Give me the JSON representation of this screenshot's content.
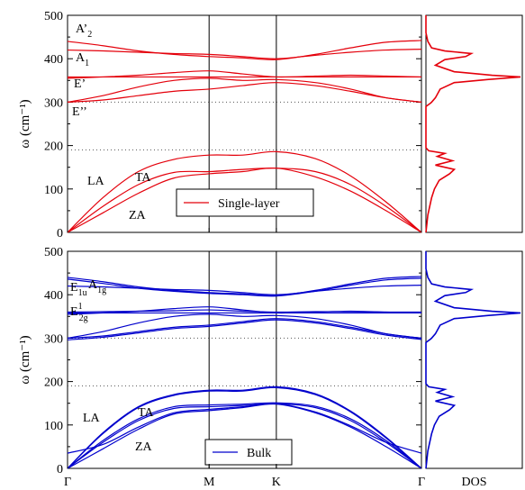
{
  "chart_data": [
    {
      "type": "line",
      "ylabel": "ω (cm⁻¹)",
      "ylim": [
        0,
        500
      ],
      "yticks": [
        0,
        100,
        200,
        300,
        400,
        500
      ],
      "x_kpoints": [
        {
          "label": "Γ",
          "x": 0.0
        },
        {
          "label": "M",
          "x": 0.4
        },
        {
          "label": "K",
          "x": 0.59
        },
        {
          "label": "Γ",
          "x": 1.0
        }
      ],
      "dotted_lines_y": [
        190,
        300
      ],
      "legend": {
        "label": "Single-layer",
        "position": "center",
        "color": "#e4000b"
      },
      "color": "#e4000b",
      "x": [
        0.0,
        0.1,
        0.2,
        0.3,
        0.4,
        0.495,
        0.59,
        0.7,
        0.8,
        0.9,
        1.0
      ],
      "series": [
        {
          "values": [
            0,
            45,
            90,
            125,
            135,
            140,
            148,
            128,
            95,
            50,
            0
          ]
        },
        {
          "values": [
            0,
            60,
            110,
            138,
            140,
            145,
            148,
            140,
            110,
            60,
            0
          ]
        },
        {
          "values": [
            0,
            80,
            140,
            168,
            178,
            178,
            186,
            170,
            130,
            70,
            0
          ]
        },
        {
          "values": [
            300,
            305,
            315,
            325,
            330,
            338,
            345,
            338,
            325,
            310,
            300
          ]
        },
        {
          "values": [
            300,
            315,
            335,
            350,
            355,
            350,
            352,
            345,
            330,
            310,
            300
          ]
        },
        {
          "values": [
            355,
            358,
            362,
            368,
            372,
            365,
            358,
            360,
            362,
            360,
            358
          ]
        },
        {
          "values": [
            358,
            358,
            358,
            358,
            358,
            358,
            358,
            358,
            358,
            358,
            358
          ]
        },
        {
          "values": [
            420,
            418,
            415,
            412,
            410,
            405,
            400,
            408,
            415,
            420,
            422
          ]
        },
        {
          "values": [
            440,
            430,
            418,
            410,
            405,
            402,
            398,
            410,
            425,
            438,
            442
          ]
        }
      ],
      "annotations": [
        {
          "text": "A’",
          "sub": "2"
        },
        {
          "text": "A",
          "sub": "1"
        },
        {
          "text": "E’",
          "sub": ""
        },
        {
          "text": "E’’",
          "sub": ""
        },
        {
          "text": "LA",
          "sub": ""
        },
        {
          "text": "TA",
          "sub": ""
        },
        {
          "text": "ZA",
          "sub": ""
        }
      ],
      "dos": {
        "xlabel": "",
        "omega": [
          0,
          20,
          40,
          60,
          80,
          100,
          120,
          135,
          145,
          155,
          165,
          175,
          182,
          188,
          195,
          210,
          250,
          290,
          298,
          300,
          310,
          330,
          345,
          352,
          358,
          362,
          370,
          385,
          398,
          405,
          412,
          418,
          425,
          440,
          460,
          500
        ],
        "values": [
          0.0,
          0.01,
          0.02,
          0.04,
          0.06,
          0.09,
          0.14,
          0.25,
          0.3,
          0.1,
          0.28,
          0.12,
          0.2,
          0.03,
          0.0,
          0.0,
          0.0,
          0.0,
          0.05,
          0.06,
          0.1,
          0.15,
          0.3,
          0.65,
          1.0,
          0.7,
          0.3,
          0.1,
          0.2,
          0.42,
          0.48,
          0.2,
          0.06,
          0.02,
          0.0,
          0.0
        ]
      }
    },
    {
      "type": "line",
      "ylabel": "ω (cm⁻¹)",
      "ylim": [
        0,
        500
      ],
      "yticks": [
        0,
        100,
        200,
        300,
        400,
        500
      ],
      "x_kpoints": [
        {
          "label": "Γ",
          "x": 0.0
        },
        {
          "label": "M",
          "x": 0.4
        },
        {
          "label": "K",
          "x": 0.59
        },
        {
          "label": "Γ",
          "x": 1.0
        }
      ],
      "dotted_lines_y": [
        190,
        300
      ],
      "legend": {
        "label": "Bulk",
        "position": "bottom-center",
        "color": "#0000cc"
      },
      "color": "#0000cc",
      "x": [
        0.0,
        0.1,
        0.2,
        0.3,
        0.4,
        0.495,
        0.59,
        0.7,
        0.8,
        0.9,
        1.0
      ],
      "series": [
        {
          "values": [
            0,
            45,
            90,
            125,
            133,
            140,
            148,
            128,
            95,
            50,
            0
          ]
        },
        {
          "values": [
            35,
            55,
            95,
            128,
            136,
            142,
            149,
            130,
            98,
            60,
            35
          ]
        },
        {
          "values": [
            0,
            60,
            110,
            138,
            142,
            145,
            149,
            140,
            110,
            60,
            0
          ]
        },
        {
          "values": [
            0,
            64,
            114,
            142,
            146,
            148,
            151,
            143,
            114,
            64,
            0
          ]
        },
        {
          "values": [
            0,
            80,
            140,
            168,
            178,
            178,
            186,
            170,
            130,
            70,
            0
          ]
        },
        {
          "values": [
            0,
            82,
            142,
            170,
            180,
            180,
            188,
            172,
            132,
            72,
            0
          ]
        },
        {
          "values": [
            300,
            305,
            315,
            325,
            330,
            338,
            345,
            338,
            325,
            310,
            300
          ]
        },
        {
          "values": [
            296,
            302,
            312,
            322,
            327,
            335,
            342,
            335,
            322,
            307,
            297
          ]
        },
        {
          "values": [
            300,
            315,
            335,
            350,
            355,
            350,
            352,
            345,
            330,
            310,
            300
          ]
        },
        {
          "values": [
            355,
            358,
            362,
            368,
            372,
            365,
            358,
            360,
            362,
            360,
            358
          ]
        },
        {
          "values": [
            358,
            358,
            358,
            358,
            358,
            358,
            358,
            358,
            358,
            358,
            358
          ]
        },
        {
          "values": [
            360,
            361,
            362,
            363,
            365,
            362,
            360,
            361,
            361,
            360,
            360
          ]
        },
        {
          "values": [
            420,
            418,
            415,
            412,
            410,
            405,
            400,
            408,
            415,
            420,
            422
          ]
        },
        {
          "values": [
            440,
            430,
            418,
            410,
            405,
            402,
            398,
            410,
            425,
            438,
            442
          ]
        },
        {
          "values": [
            436,
            426,
            415,
            408,
            403,
            400,
            397,
            408,
            422,
            434,
            438
          ]
        }
      ],
      "annotations": [
        {
          "text": "E",
          "sub": "1u"
        },
        {
          "text": "A",
          "sub": "1g"
        },
        {
          "text": "E",
          "sub": "2g",
          "sup": "1"
        },
        {
          "text": "LA",
          "sub": ""
        },
        {
          "text": "TA",
          "sub": ""
        },
        {
          "text": "ZA",
          "sub": ""
        }
      ],
      "dos": {
        "xlabel": "DOS",
        "omega": [
          0,
          20,
          40,
          60,
          80,
          100,
          120,
          135,
          145,
          155,
          165,
          175,
          182,
          188,
          195,
          210,
          250,
          290,
          298,
          300,
          310,
          330,
          345,
          352,
          358,
          362,
          370,
          385,
          398,
          405,
          412,
          418,
          425,
          440,
          460,
          500
        ],
        "values": [
          0.0,
          0.01,
          0.02,
          0.04,
          0.06,
          0.09,
          0.14,
          0.25,
          0.3,
          0.1,
          0.28,
          0.12,
          0.2,
          0.03,
          0.0,
          0.0,
          0.0,
          0.0,
          0.05,
          0.06,
          0.1,
          0.15,
          0.3,
          0.65,
          1.0,
          0.7,
          0.3,
          0.1,
          0.2,
          0.42,
          0.48,
          0.2,
          0.06,
          0.02,
          0.0,
          0.0
        ]
      }
    }
  ]
}
